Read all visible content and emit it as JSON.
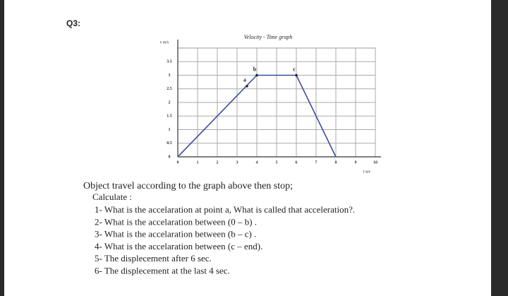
{
  "question": "Q3:",
  "chart_data": {
    "type": "line",
    "title": "Velocity - Time graph",
    "y_label": "v m/s",
    "x_label": "t sec",
    "x": [
      0,
      4,
      6,
      8
    ],
    "values": [
      0,
      3,
      3,
      0
    ],
    "color": "#3b4f9c",
    "xlim": [
      0,
      10
    ],
    "xticks": [
      0,
      1,
      2,
      3,
      4,
      5,
      6,
      7,
      8,
      9,
      10
    ],
    "ylim": [
      0,
      4
    ],
    "yticks": [
      0,
      0.5,
      1,
      1.5,
      2,
      2.5,
      3,
      3.5
    ],
    "grid": true,
    "points": [
      {
        "label": "a",
        "x": 3.5,
        "y": 2.6
      },
      {
        "label": "b",
        "x": 4,
        "y": 3
      },
      {
        "label": "c",
        "x": 6,
        "y": 3
      }
    ]
  },
  "text": {
    "intro": "Object travel according to the graph above then stop;",
    "calculate": "Calculate :",
    "items": [
      "1- What is the accelaration at point a, What is called  that acceleration?.",
      "2- What is the accelaration between (0 – b) .",
      "3- What is the accelaration between (b – c) .",
      "4- What is the accelaration between (c – end).",
      "5- The displecement after 6 sec.",
      "6- The displecement at the last 4 sec."
    ]
  }
}
